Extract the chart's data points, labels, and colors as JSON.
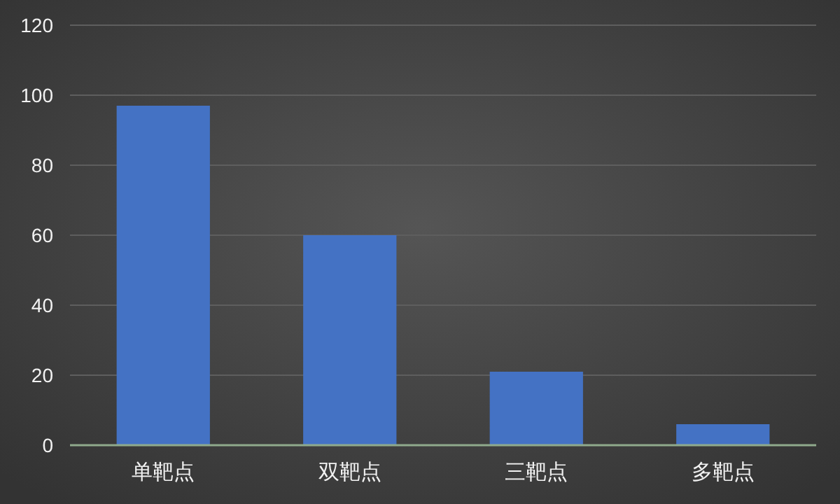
{
  "chart_data": {
    "type": "bar",
    "categories": [
      "单靶点",
      "双靶点",
      "三靶点",
      "多靶点"
    ],
    "values": [
      97,
      60,
      21,
      6
    ],
    "color": "#4472c4",
    "ylim": [
      0,
      120
    ],
    "yticks": [
      0,
      20,
      40,
      60,
      80,
      100,
      120
    ],
    "grid": "y"
  }
}
